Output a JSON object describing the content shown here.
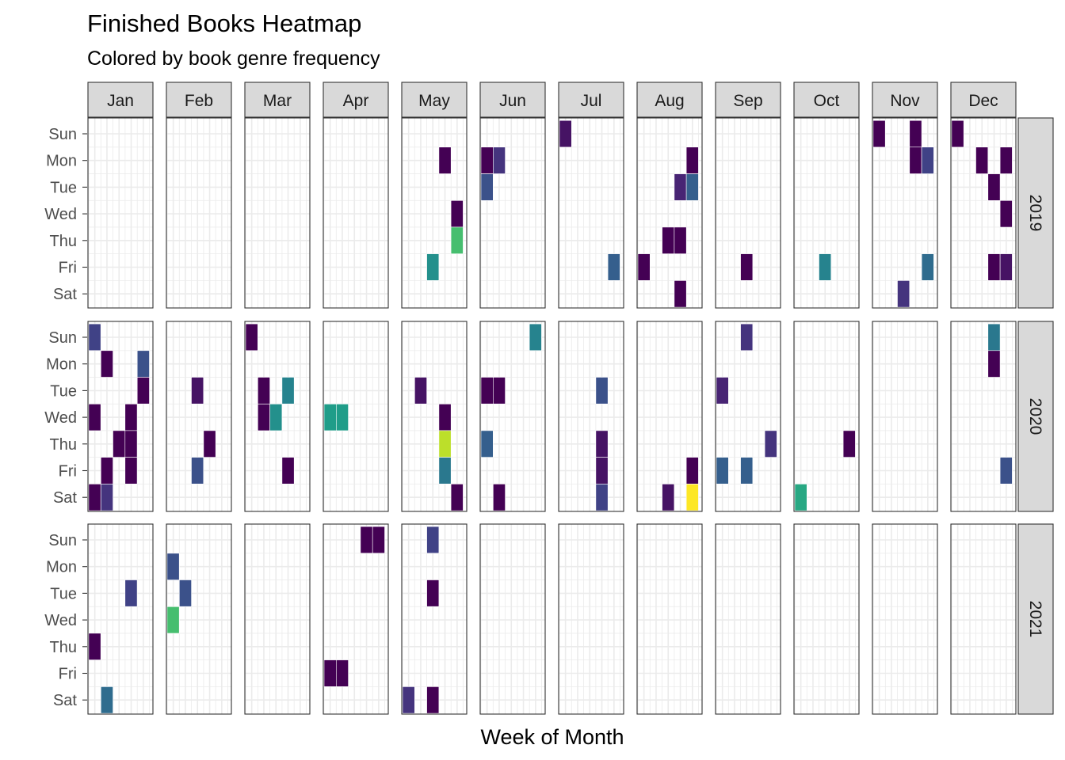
{
  "chart_data": {
    "type": "heatmap",
    "title": "Finished Books Heatmap",
    "subtitle": "Colored by book genre frequency",
    "xlabel": "Week of Month",
    "ylabel": "",
    "months": [
      "Jan",
      "Feb",
      "Mar",
      "Apr",
      "May",
      "Jun",
      "Jul",
      "Aug",
      "Sep",
      "Oct",
      "Nov",
      "Dec"
    ],
    "years": [
      "2019",
      "2020",
      "2021"
    ],
    "weekdays": [
      "Sun",
      "Mon",
      "Tue",
      "Wed",
      "Thu",
      "Fri",
      "Sat"
    ],
    "grid": true,
    "legend": "none",
    "color_scale": "viridis",
    "cells": [
      {
        "year": "2019",
        "month": "May",
        "week": 4,
        "day": "Mon",
        "value": 0.0
      },
      {
        "year": "2019",
        "month": "May",
        "week": 5,
        "day": "Wed",
        "value": 0.0
      },
      {
        "year": "2019",
        "month": "May",
        "week": 5,
        "day": "Thu",
        "value": 0.7
      },
      {
        "year": "2019",
        "month": "May",
        "week": 3,
        "day": "Fri",
        "value": 0.5
      },
      {
        "year": "2019",
        "month": "Jun",
        "week": 1,
        "day": "Mon",
        "value": 0.0
      },
      {
        "year": "2019",
        "month": "Jun",
        "week": 2,
        "day": "Mon",
        "value": 0.15
      },
      {
        "year": "2019",
        "month": "Jun",
        "week": 1,
        "day": "Tue",
        "value": 0.25
      },
      {
        "year": "2019",
        "month": "Jul",
        "week": 1,
        "day": "Sun",
        "value": 0.05
      },
      {
        "year": "2019",
        "month": "Jul",
        "week": 5,
        "day": "Fri",
        "value": 0.3
      },
      {
        "year": "2019",
        "month": "Aug",
        "week": 5,
        "day": "Mon",
        "value": 0.0
      },
      {
        "year": "2019",
        "month": "Aug",
        "week": 4,
        "day": "Tue",
        "value": 0.1
      },
      {
        "year": "2019",
        "month": "Aug",
        "week": 5,
        "day": "Tue",
        "value": 0.3
      },
      {
        "year": "2019",
        "month": "Aug",
        "week": 3,
        "day": "Thu",
        "value": 0.0
      },
      {
        "year": "2019",
        "month": "Aug",
        "week": 4,
        "day": "Thu",
        "value": 0.0
      },
      {
        "year": "2019",
        "month": "Aug",
        "week": 1,
        "day": "Fri",
        "value": 0.0
      },
      {
        "year": "2019",
        "month": "Aug",
        "week": 4,
        "day": "Sat",
        "value": 0.0
      },
      {
        "year": "2019",
        "month": "Sep",
        "week": 3,
        "day": "Fri",
        "value": 0.0
      },
      {
        "year": "2019",
        "month": "Oct",
        "week": 3,
        "day": "Fri",
        "value": 0.45
      },
      {
        "year": "2019",
        "month": "Nov",
        "week": 1,
        "day": "Sun",
        "value": 0.0
      },
      {
        "year": "2019",
        "month": "Nov",
        "week": 4,
        "day": "Sun",
        "value": 0.0
      },
      {
        "year": "2019",
        "month": "Nov",
        "week": 4,
        "day": "Mon",
        "value": 0.0
      },
      {
        "year": "2019",
        "month": "Nov",
        "week": 5,
        "day": "Mon",
        "value": 0.2
      },
      {
        "year": "2019",
        "month": "Nov",
        "week": 5,
        "day": "Fri",
        "value": 0.35
      },
      {
        "year": "2019",
        "month": "Nov",
        "week": 3,
        "day": "Sat",
        "value": 0.15
      },
      {
        "year": "2019",
        "month": "Dec",
        "week": 1,
        "day": "Sun",
        "value": 0.0
      },
      {
        "year": "2019",
        "month": "Dec",
        "week": 3,
        "day": "Mon",
        "value": 0.0
      },
      {
        "year": "2019",
        "month": "Dec",
        "week": 5,
        "day": "Mon",
        "value": 0.0
      },
      {
        "year": "2019",
        "month": "Dec",
        "week": 4,
        "day": "Tue",
        "value": 0.0
      },
      {
        "year": "2019",
        "month": "Dec",
        "week": 5,
        "day": "Wed",
        "value": 0.0
      },
      {
        "year": "2019",
        "month": "Dec",
        "week": 4,
        "day": "Fri",
        "value": 0.0
      },
      {
        "year": "2019",
        "month": "Dec",
        "week": 5,
        "day": "Fri",
        "value": 0.05
      },
      {
        "year": "2020",
        "month": "Jan",
        "week": 1,
        "day": "Sun",
        "value": 0.2
      },
      {
        "year": "2020",
        "month": "Jan",
        "week": 2,
        "day": "Mon",
        "value": 0.0
      },
      {
        "year": "2020",
        "month": "Jan",
        "week": 5,
        "day": "Mon",
        "value": 0.25
      },
      {
        "year": "2020",
        "month": "Jan",
        "week": 5,
        "day": "Tue",
        "value": 0.0
      },
      {
        "year": "2020",
        "month": "Jan",
        "week": 1,
        "day": "Wed",
        "value": 0.0
      },
      {
        "year": "2020",
        "month": "Jan",
        "week": 4,
        "day": "Wed",
        "value": 0.0
      },
      {
        "year": "2020",
        "month": "Jan",
        "week": 3,
        "day": "Thu",
        "value": 0.0
      },
      {
        "year": "2020",
        "month": "Jan",
        "week": 4,
        "day": "Thu",
        "value": 0.0
      },
      {
        "year": "2020",
        "month": "Jan",
        "week": 2,
        "day": "Fri",
        "value": 0.0
      },
      {
        "year": "2020",
        "month": "Jan",
        "week": 4,
        "day": "Fri",
        "value": 0.0
      },
      {
        "year": "2020",
        "month": "Jan",
        "week": 1,
        "day": "Sat",
        "value": 0.0
      },
      {
        "year": "2020",
        "month": "Jan",
        "week": 2,
        "day": "Sat",
        "value": 0.15
      },
      {
        "year": "2020",
        "month": "Feb",
        "week": 3,
        "day": "Tue",
        "value": 0.05
      },
      {
        "year": "2020",
        "month": "Feb",
        "week": 4,
        "day": "Thu",
        "value": 0.0
      },
      {
        "year": "2020",
        "month": "Feb",
        "week": 3,
        "day": "Fri",
        "value": 0.25
      },
      {
        "year": "2020",
        "month": "Mar",
        "week": 1,
        "day": "Sun",
        "value": 0.0
      },
      {
        "year": "2020",
        "month": "Mar",
        "week": 2,
        "day": "Tue",
        "value": 0.0
      },
      {
        "year": "2020",
        "month": "Mar",
        "week": 4,
        "day": "Tue",
        "value": 0.45
      },
      {
        "year": "2020",
        "month": "Mar",
        "week": 2,
        "day": "Wed",
        "value": 0.0
      },
      {
        "year": "2020",
        "month": "Mar",
        "week": 3,
        "day": "Wed",
        "value": 0.5
      },
      {
        "year": "2020",
        "month": "Mar",
        "week": 4,
        "day": "Fri",
        "value": 0.0
      },
      {
        "year": "2020",
        "month": "Apr",
        "week": 1,
        "day": "Wed",
        "value": 0.55
      },
      {
        "year": "2020",
        "month": "Apr",
        "week": 2,
        "day": "Wed",
        "value": 0.55
      },
      {
        "year": "2020",
        "month": "May",
        "week": 2,
        "day": "Tue",
        "value": 0.05
      },
      {
        "year": "2020",
        "month": "May",
        "week": 4,
        "day": "Wed",
        "value": 0.0
      },
      {
        "year": "2020",
        "month": "May",
        "week": 4,
        "day": "Thu",
        "value": 0.9
      },
      {
        "year": "2020",
        "month": "May",
        "week": 4,
        "day": "Fri",
        "value": 0.4
      },
      {
        "year": "2020",
        "month": "May",
        "week": 5,
        "day": "Sat",
        "value": 0.0
      },
      {
        "year": "2020",
        "month": "Jun",
        "week": 5,
        "day": "Sun",
        "value": 0.45
      },
      {
        "year": "2020",
        "month": "Jun",
        "week": 1,
        "day": "Tue",
        "value": 0.0
      },
      {
        "year": "2020",
        "month": "Jun",
        "week": 2,
        "day": "Tue",
        "value": 0.0
      },
      {
        "year": "2020",
        "month": "Jun",
        "week": 1,
        "day": "Thu",
        "value": 0.3
      },
      {
        "year": "2020",
        "month": "Jun",
        "week": 2,
        "day": "Sat",
        "value": 0.0
      },
      {
        "year": "2020",
        "month": "Jul",
        "week": 4,
        "day": "Tue",
        "value": 0.25
      },
      {
        "year": "2020",
        "month": "Jul",
        "week": 4,
        "day": "Thu",
        "value": 0.05
      },
      {
        "year": "2020",
        "month": "Jul",
        "week": 4,
        "day": "Fri",
        "value": 0.05
      },
      {
        "year": "2020",
        "month": "Jul",
        "week": 4,
        "day": "Sat",
        "value": 0.2
      },
      {
        "year": "2020",
        "month": "Aug",
        "week": 5,
        "day": "Fri",
        "value": 0.0
      },
      {
        "year": "2020",
        "month": "Aug",
        "week": 3,
        "day": "Sat",
        "value": 0.05
      },
      {
        "year": "2020",
        "month": "Aug",
        "week": 5,
        "day": "Sat",
        "value": 1.0
      },
      {
        "year": "2020",
        "month": "Sep",
        "week": 3,
        "day": "Sun",
        "value": 0.15
      },
      {
        "year": "2020",
        "month": "Sep",
        "week": 1,
        "day": "Tue",
        "value": 0.1
      },
      {
        "year": "2020",
        "month": "Sep",
        "week": 5,
        "day": "Thu",
        "value": 0.15
      },
      {
        "year": "2020",
        "month": "Sep",
        "week": 1,
        "day": "Fri",
        "value": 0.3
      },
      {
        "year": "2020",
        "month": "Sep",
        "week": 3,
        "day": "Fri",
        "value": 0.3
      },
      {
        "year": "2020",
        "month": "Oct",
        "week": 5,
        "day": "Thu",
        "value": 0.0
      },
      {
        "year": "2020",
        "month": "Oct",
        "week": 1,
        "day": "Sat",
        "value": 0.6
      },
      {
        "year": "2020",
        "month": "Dec",
        "week": 4,
        "day": "Sun",
        "value": 0.4
      },
      {
        "year": "2020",
        "month": "Dec",
        "week": 4,
        "day": "Mon",
        "value": 0.0
      },
      {
        "year": "2020",
        "month": "Dec",
        "week": 5,
        "day": "Fri",
        "value": 0.25
      },
      {
        "year": "2021",
        "month": "Jan",
        "week": 4,
        "day": "Tue",
        "value": 0.2
      },
      {
        "year": "2021",
        "month": "Jan",
        "week": 1,
        "day": "Thu",
        "value": 0.0
      },
      {
        "year": "2021",
        "month": "Jan",
        "week": 2,
        "day": "Sat",
        "value": 0.35
      },
      {
        "year": "2021",
        "month": "Feb",
        "week": 1,
        "day": "Mon",
        "value": 0.25
      },
      {
        "year": "2021",
        "month": "Feb",
        "week": 2,
        "day": "Tue",
        "value": 0.25
      },
      {
        "year": "2021",
        "month": "Feb",
        "week": 1,
        "day": "Wed",
        "value": 0.7
      },
      {
        "year": "2021",
        "month": "Apr",
        "week": 4,
        "day": "Sun",
        "value": 0.0
      },
      {
        "year": "2021",
        "month": "Apr",
        "week": 5,
        "day": "Sun",
        "value": 0.0
      },
      {
        "year": "2021",
        "month": "Apr",
        "week": 1,
        "day": "Fri",
        "value": 0.0
      },
      {
        "year": "2021",
        "month": "Apr",
        "week": 2,
        "day": "Fri",
        "value": 0.0
      },
      {
        "year": "2021",
        "month": "May",
        "week": 3,
        "day": "Sun",
        "value": 0.2
      },
      {
        "year": "2021",
        "month": "May",
        "week": 3,
        "day": "Tue",
        "value": 0.0
      },
      {
        "year": "2021",
        "month": "May",
        "week": 1,
        "day": "Sat",
        "value": 0.15
      },
      {
        "year": "2021",
        "month": "May",
        "week": 3,
        "day": "Sat",
        "value": 0.0
      }
    ]
  }
}
